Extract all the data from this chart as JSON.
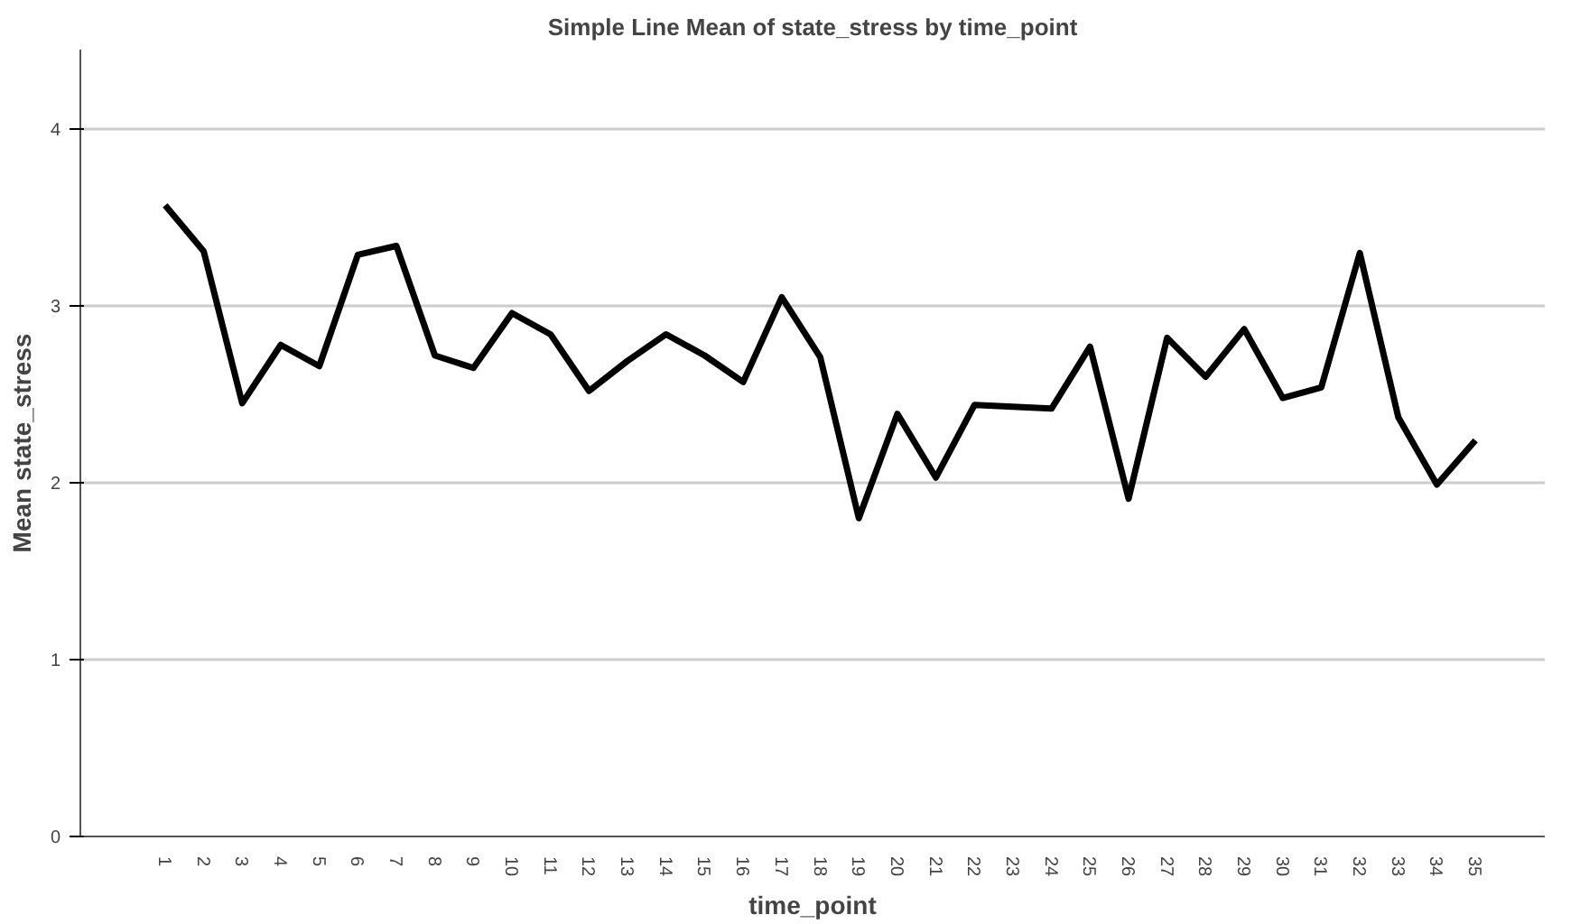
{
  "chart_data": {
    "type": "line",
    "title": "Simple Line Mean of state_stress by time_point",
    "xlabel": "time_point",
    "ylabel": "Mean state_stress",
    "categories": [
      "1",
      "2",
      "3",
      "4",
      "5",
      "6",
      "7",
      "8",
      "9",
      "10",
      "11",
      "12",
      "13",
      "14",
      "15",
      "16",
      "17",
      "18",
      "19",
      "20",
      "21",
      "22",
      "23",
      "24",
      "25",
      "26",
      "27",
      "28",
      "29",
      "30",
      "31",
      "32",
      "33",
      "34",
      "35"
    ],
    "series": [
      {
        "color": "#000000",
        "values": [
          3.57,
          3.31,
          2.45,
          2.78,
          2.66,
          3.29,
          3.34,
          2.72,
          2.65,
          2.96,
          2.84,
          2.52,
          2.69,
          2.84,
          2.72,
          2.57,
          3.05,
          2.71,
          1.8,
          2.39,
          2.03,
          2.44,
          2.43,
          2.42,
          2.77,
          1.91,
          2.82,
          2.6,
          2.87,
          2.48,
          2.54,
          3.3,
          2.37,
          1.99,
          2.24
        ]
      }
    ],
    "ylim": [
      0,
      4.45
    ],
    "yticks": [
      0,
      1,
      2,
      3,
      4
    ],
    "grid": "y",
    "marker": "none",
    "line_style": "solid"
  }
}
